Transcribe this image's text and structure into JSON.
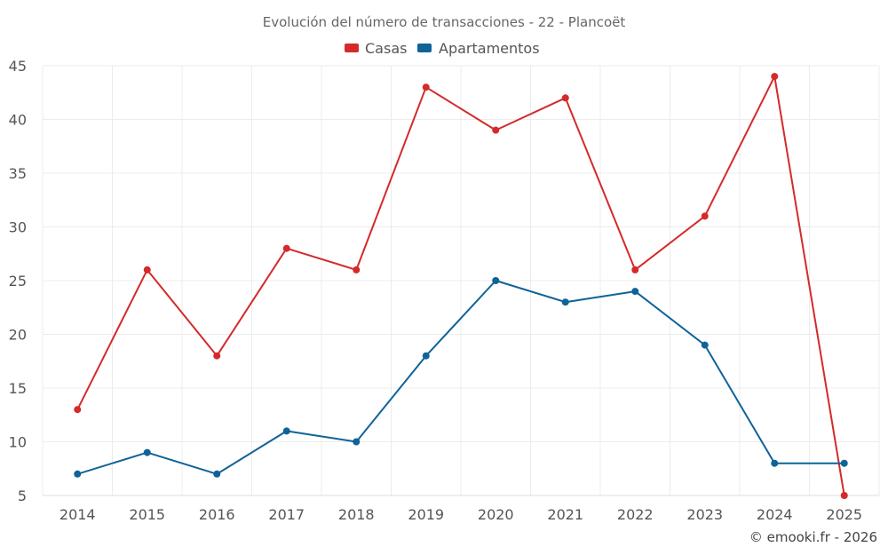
{
  "chart_data": {
    "type": "line",
    "title": "Evolución del número de transacciones - 22 - Plancoët",
    "categories": [
      "2014",
      "2015",
      "2016",
      "2017",
      "2018",
      "2019",
      "2020",
      "2021",
      "2022",
      "2023",
      "2024",
      "2025"
    ],
    "series": [
      {
        "name": "Casas",
        "color": "#d42a2a",
        "values": [
          13,
          26,
          18,
          28,
          26,
          43,
          39,
          42,
          26,
          31,
          44,
          5
        ]
      },
      {
        "name": "Apartamentos",
        "color": "#0f6398",
        "values": [
          7,
          9,
          7,
          11,
          10,
          18,
          25,
          23,
          24,
          19,
          8,
          8
        ]
      }
    ],
    "ylim": [
      5,
      45
    ],
    "yticks": [
      5,
      10,
      15,
      20,
      25,
      30,
      35,
      40,
      45
    ],
    "grid": true,
    "legend": "top-center",
    "xlabel": "",
    "ylabel": ""
  },
  "credit": "© emooki.fr - 2026"
}
